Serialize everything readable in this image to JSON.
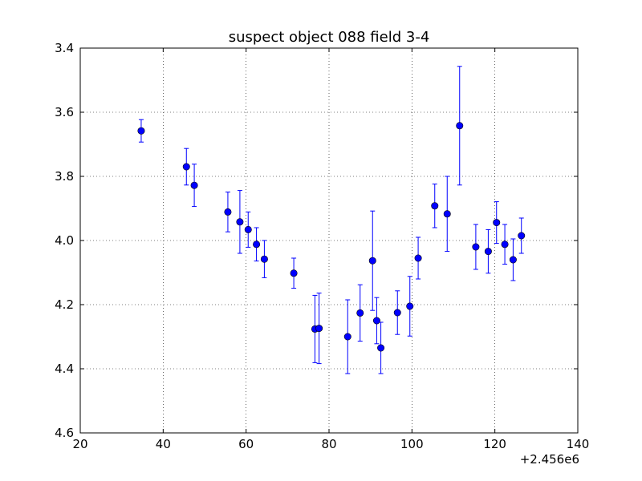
{
  "chart_data": {
    "type": "scatter",
    "title": "suspect object 088 field 3-4",
    "xlabel": "",
    "ylabel": "",
    "x_offset_label": "+2.456e6",
    "xlim": [
      20,
      140
    ],
    "ylim": [
      4.6,
      3.4
    ],
    "y_inverted": true,
    "x_ticks": [
      "20",
      "40",
      "60",
      "80",
      "100",
      "120",
      "140"
    ],
    "y_ticks": [
      "3.4",
      "3.6",
      "3.8",
      "4.0",
      "4.2",
      "4.4",
      "4.6"
    ],
    "grid": true,
    "marker_color": "#0000ff",
    "series": [
      {
        "points": [
          {
            "x": 34.7,
            "y": 3.658,
            "err": 0.035
          },
          {
            "x": 45.6,
            "y": 3.77,
            "err": 0.057
          },
          {
            "x": 47.5,
            "y": 3.828,
            "err": 0.066
          },
          {
            "x": 55.6,
            "y": 3.911,
            "err": 0.062
          },
          {
            "x": 58.5,
            "y": 3.942,
            "err": 0.098
          },
          {
            "x": 60.5,
            "y": 3.966,
            "err": 0.055
          },
          {
            "x": 62.5,
            "y": 4.012,
            "err": 0.052
          },
          {
            "x": 64.4,
            "y": 4.058,
            "err": 0.058
          },
          {
            "x": 71.5,
            "y": 4.102,
            "err": 0.047
          },
          {
            "x": 76.6,
            "y": 4.276,
            "err": 0.105
          },
          {
            "x": 77.6,
            "y": 4.274,
            "err": 0.11
          },
          {
            "x": 84.5,
            "y": 4.3,
            "err": 0.115
          },
          {
            "x": 87.5,
            "y": 4.226,
            "err": 0.088
          },
          {
            "x": 90.5,
            "y": 4.063,
            "err": 0.155
          },
          {
            "x": 91.5,
            "y": 4.25,
            "err": 0.072
          },
          {
            "x": 92.5,
            "y": 4.335,
            "err": 0.08
          },
          {
            "x": 96.5,
            "y": 4.225,
            "err": 0.068
          },
          {
            "x": 99.5,
            "y": 4.205,
            "err": 0.093
          },
          {
            "x": 101.5,
            "y": 4.055,
            "err": 0.065
          },
          {
            "x": 105.5,
            "y": 3.892,
            "err": 0.068
          },
          {
            "x": 108.5,
            "y": 3.917,
            "err": 0.117
          },
          {
            "x": 111.5,
            "y": 3.642,
            "err": 0.185
          },
          {
            "x": 115.4,
            "y": 4.02,
            "err": 0.07
          },
          {
            "x": 118.4,
            "y": 4.034,
            "err": 0.068
          },
          {
            "x": 120.4,
            "y": 3.944,
            "err": 0.065
          },
          {
            "x": 122.4,
            "y": 4.012,
            "err": 0.062
          },
          {
            "x": 124.4,
            "y": 4.06,
            "err": 0.065
          },
          {
            "x": 126.4,
            "y": 3.985,
            "err": 0.055
          }
        ]
      }
    ]
  }
}
